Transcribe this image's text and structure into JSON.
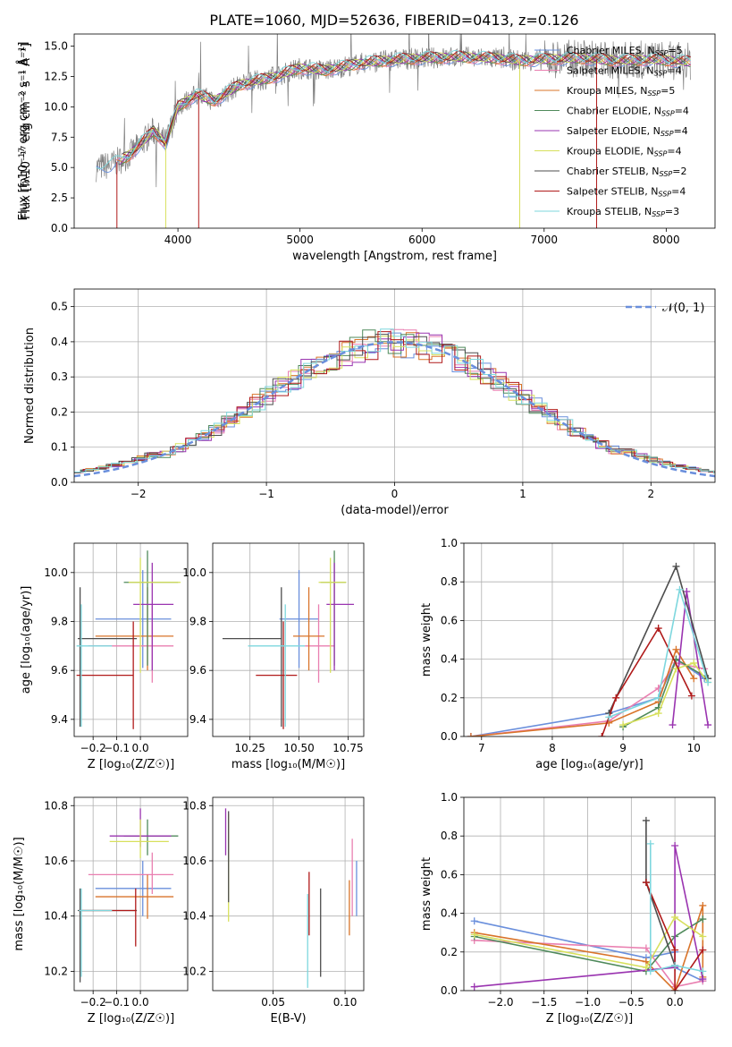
{
  "figure_title": "PLATE=1060, MJD=52636, FIBERID=0413, z=0.126",
  "colors": {
    "Chabrier MILES": "#6a8fdc",
    "Salpeter MILES": "#e97fb0",
    "Kroupa MILES": "#d9742a",
    "Chabrier ELODIE": "#4f8a5b",
    "Salpeter ELODIE": "#9a34b0",
    "Kroupa ELODIE": "#d7e05c",
    "Chabrier STELIB": "#4d4d4d",
    "Salpeter STELIB": "#b01a1a",
    "Kroupa STELIB": "#7ed7de",
    "data": "#808080",
    "normal": "#6a8fdc"
  },
  "chart_data": [
    {
      "id": "spectrum",
      "type": "line",
      "xlabel": "wavelength [Angstrom, rest frame]",
      "ylabel": "Flux [fλ10⁻¹⁷ erg cm⁻² s⁻¹ Å⁻¹]",
      "xlim": [
        3150,
        8400
      ],
      "ylim": [
        0,
        16
      ],
      "xticks": [
        4000,
        5000,
        6000,
        7000,
        8000
      ],
      "yticks": [
        0.0,
        2.5,
        5.0,
        7.5,
        10.0,
        12.5,
        15.0
      ],
      "legend": "right",
      "continuum": {
        "x": [
          3330,
          3450,
          3600,
          3800,
          3900,
          4000,
          4150,
          4300,
          4500,
          4800,
          5000,
          5200,
          5500,
          5800,
          6000,
          6300,
          6600,
          6800,
          7000,
          7300,
          7600,
          7900,
          8200
        ],
        "y": [
          5.0,
          5.2,
          6.0,
          8.0,
          7.0,
          10.0,
          11.0,
          10.5,
          11.8,
          12.5,
          13.2,
          13.0,
          13.6,
          13.9,
          14.0,
          14.1,
          14.0,
          13.8,
          13.9,
          14.0,
          13.8,
          13.9,
          13.7
        ]
      },
      "series": [
        {
          "name": "Chabrier MILES, N_SSP=5",
          "label": "Chabrier MILES, N",
          "n": "=5"
        },
        {
          "name": "Salpeter MILES, N_SSP=4",
          "label": "Salpeter MILES, N",
          "n": "=4"
        },
        {
          "name": "Kroupa MILES, N_SSP=5",
          "label": "Kroupa MILES, N",
          "n": "=5"
        },
        {
          "name": "Chabrier ELODIE, N_SSP=4",
          "label": "Chabrier ELODIE, N",
          "n": "=4"
        },
        {
          "name": "Salpeter ELODIE, N_SSP=4",
          "label": "Salpeter ELODIE, N",
          "n": "=4"
        },
        {
          "name": "Kroupa ELODIE, N_SSP=4",
          "label": "Kroupa ELODIE, N",
          "n": "=4"
        },
        {
          "name": "Chabrier STELIB, N_SSP=2",
          "label": "Chabrier STELIB, N",
          "n": "=2"
        },
        {
          "name": "Salpeter STELIB, N_SSP=4",
          "label": "Salpeter STELIB, N",
          "n": "=4"
        },
        {
          "name": "Kroupa STELIB, N_SSP=3",
          "label": "Kroupa STELIB, N",
          "n": "=3"
        }
      ],
      "drops": [
        {
          "series": "Salpeter STELIB",
          "x": 3500
        },
        {
          "series": "Kroupa ELODIE",
          "x": 3900
        },
        {
          "series": "Salpeter STELIB",
          "x": 4170
        },
        {
          "series": "Kroupa ELODIE",
          "x": 6800
        },
        {
          "series": "Salpeter STELIB",
          "x": 7430
        }
      ]
    },
    {
      "id": "residuals",
      "type": "histogram",
      "xlabel": "(data-model)/error",
      "ylabel": "Normed distribution",
      "xlim": [
        -2.5,
        2.5
      ],
      "ylim": [
        0,
        0.55
      ],
      "xticks": [
        -2,
        -1,
        0,
        1,
        2
      ],
      "yticks": [
        0.0,
        0.1,
        0.2,
        0.3,
        0.4,
        0.5
      ],
      "grid": true,
      "legend": {
        "position": "top-right",
        "label": "𝒩(0, 1)"
      },
      "bin_width": 0.1
    },
    {
      "id": "age-vs-Z",
      "type": "errorbar",
      "xlabel": "Z [log₁₀(Z/Z☉)]",
      "ylabel": "age  [log₁₀(age/yr)]",
      "xlim": [
        -0.28,
        0.2
      ],
      "ylim": [
        9.33,
        10.12
      ],
      "xticks": [
        -0.2,
        -0.1,
        0.0
      ],
      "yticks": [
        9.4,
        9.6,
        9.8,
        10.0
      ],
      "grid": true,
      "points": [
        {
          "series": "Chabrier MILES",
          "x": 0.01,
          "xerr": [
            0.2,
            0.12
          ],
          "y": 9.81,
          "yerr": [
            0.2,
            0.2
          ]
        },
        {
          "series": "Salpeter MILES",
          "x": 0.05,
          "xerr": [
            0.27,
            0.09
          ],
          "y": 9.7,
          "yerr": [
            0.15,
            0.17
          ]
        },
        {
          "series": "Kroupa MILES",
          "x": 0.03,
          "xerr": [
            0.22,
            0.11
          ],
          "y": 9.74,
          "yerr": [
            0.14,
            0.2
          ]
        },
        {
          "series": "Chabrier ELODIE",
          "x": 0.03,
          "xerr": [
            0.1,
            0.13
          ],
          "y": 9.96,
          "yerr": [
            0.34,
            0.13
          ]
        },
        {
          "series": "Salpeter ELODIE",
          "x": 0.05,
          "xerr": [
            0.08,
            0.09
          ],
          "y": 9.87,
          "yerr": [
            0.27,
            0.17
          ]
        },
        {
          "series": "Kroupa ELODIE",
          "x": 0.0,
          "xerr": [
            0.05,
            0.17
          ],
          "y": 9.96,
          "yerr": [
            0.37,
            0.1
          ]
        },
        {
          "series": "Chabrier STELIB",
          "x": -0.255,
          "xerr": [
            0.01,
            0.24
          ],
          "y": 9.73,
          "yerr": [
            0.36,
            0.21
          ]
        },
        {
          "series": "Salpeter STELIB",
          "x": -0.03,
          "xerr": [
            0.24,
            0.0
          ],
          "y": 9.58,
          "yerr": [
            0.22,
            0.22
          ]
        },
        {
          "series": "Kroupa STELIB",
          "x": -0.25,
          "xerr": [
            0.02,
            0.13
          ],
          "y": 9.7,
          "yerr": [
            0.33,
            0.17
          ]
        }
      ]
    },
    {
      "id": "age-vs-mass",
      "type": "errorbar",
      "xlabel": "mass [log₁₀(M/M☉)]",
      "ylabel": "",
      "xlim": [
        10.06,
        10.83
      ],
      "ylim": [
        9.33,
        10.12
      ],
      "xticks": [
        10.25,
        10.5,
        10.75
      ],
      "yticks": [
        9.4,
        9.6,
        9.8,
        10.0
      ],
      "grid": true,
      "points": [
        {
          "series": "Chabrier MILES",
          "x": 10.5,
          "xerr": [
            0.1,
            0.1
          ],
          "y": 9.81,
          "yerr": [
            0.2,
            0.2
          ]
        },
        {
          "series": "Salpeter MILES",
          "x": 10.6,
          "xerr": [
            0.07,
            0.08
          ],
          "y": 9.7,
          "yerr": [
            0.15,
            0.17
          ]
        },
        {
          "series": "Kroupa MILES",
          "x": 10.55,
          "xerr": [
            0.08,
            0.08
          ],
          "y": 9.74,
          "yerr": [
            0.14,
            0.2
          ]
        },
        {
          "series": "Chabrier ELODIE",
          "x": 10.68,
          "xerr": [
            0.07,
            0.06
          ],
          "y": 9.96,
          "yerr": [
            0.34,
            0.13
          ]
        },
        {
          "series": "Salpeter ELODIE",
          "x": 10.68,
          "xerr": [
            0.04,
            0.1
          ],
          "y": 9.87,
          "yerr": [
            0.27,
            0.17
          ]
        },
        {
          "series": "Kroupa ELODIE",
          "x": 10.66,
          "xerr": [
            0.06,
            0.08
          ],
          "y": 9.96,
          "yerr": [
            0.37,
            0.1
          ]
        },
        {
          "series": "Chabrier STELIB",
          "x": 10.41,
          "xerr": [
            0.3,
            0.0
          ],
          "y": 9.73,
          "yerr": [
            0.36,
            0.21
          ]
        },
        {
          "series": "Salpeter STELIB",
          "x": 10.42,
          "xerr": [
            0.14,
            0.07
          ],
          "y": 9.58,
          "yerr": [
            0.22,
            0.22
          ]
        },
        {
          "series": "Kroupa STELIB",
          "x": 10.43,
          "xerr": [
            0.19,
            0.1
          ],
          "y": 9.7,
          "yerr": [
            0.33,
            0.17
          ]
        }
      ]
    },
    {
      "id": "mass-weight-vs-age",
      "type": "line",
      "xlabel": "age  [log₁₀(age/yr)]",
      "ylabel": "mass weight",
      "xlim": [
        6.75,
        10.3
      ],
      "ylim": [
        0,
        1
      ],
      "xticks": [
        7,
        8,
        9,
        10
      ],
      "yticks": [
        0.0,
        0.2,
        0.4,
        0.6,
        0.8,
        1.0
      ],
      "grid": true,
      "series": [
        {
          "series": "Chabrier MILES",
          "x": [
            6.85,
            8.8,
            9.5,
            9.75,
            10.15
          ],
          "y": [
            0.0,
            0.12,
            0.2,
            0.4,
            0.3
          ]
        },
        {
          "series": "Salpeter MILES",
          "x": [
            6.85,
            8.8,
            9.5,
            9.75,
            10.15
          ],
          "y": [
            0.0,
            0.08,
            0.25,
            0.38,
            0.35
          ]
        },
        {
          "series": "Kroupa MILES",
          "x": [
            6.85,
            8.8,
            9.5,
            9.75,
            10.0
          ],
          "y": [
            0.0,
            0.07,
            0.18,
            0.45,
            0.3
          ]
        },
        {
          "series": "Chabrier ELODIE",
          "x": [
            9.0,
            9.5,
            9.75,
            10.2
          ],
          "y": [
            0.05,
            0.15,
            0.4,
            0.3
          ]
        },
        {
          "series": "Salpeter ELODIE",
          "x": [
            9.7,
            9.9,
            10.2
          ],
          "y": [
            0.06,
            0.75,
            0.06
          ]
        },
        {
          "series": "Kroupa ELODIE",
          "x": [
            9.0,
            9.5,
            9.75,
            10.0,
            10.2
          ],
          "y": [
            0.06,
            0.12,
            0.35,
            0.38,
            0.28
          ]
        },
        {
          "series": "Chabrier STELIB",
          "x": [
            8.8,
            9.75,
            10.2
          ],
          "y": [
            0.12,
            0.88,
            0.3
          ]
        },
        {
          "series": "Salpeter STELIB",
          "x": [
            8.7,
            8.9,
            9.5,
            9.97
          ],
          "y": [
            0.0,
            0.2,
            0.56,
            0.21
          ]
        },
        {
          "series": "Kroupa STELIB",
          "x": [
            8.8,
            9.5,
            9.8,
            10.2
          ],
          "y": [
            0.1,
            0.2,
            0.76,
            0.28
          ]
        }
      ]
    },
    {
      "id": "mass-vs-Z",
      "type": "errorbar",
      "xlabel": "Z [log₁₀(Z/Z☉)]",
      "ylabel": "mass [log₁₀(M/M☉)]",
      "xlim": [
        -0.28,
        0.2
      ],
      "ylim": [
        10.13,
        10.83
      ],
      "xticks": [
        -0.2,
        -0.1,
        0.0
      ],
      "yticks": [
        10.2,
        10.4,
        10.6,
        10.8
      ],
      "grid": true,
      "points": [
        {
          "series": "Chabrier MILES",
          "x": 0.01,
          "xerr": [
            0.2,
            0.12
          ],
          "y": 10.5,
          "yerr": [
            0.1,
            0.1
          ]
        },
        {
          "series": "Salpeter MILES",
          "x": 0.05,
          "xerr": [
            0.27,
            0.09
          ],
          "y": 10.55,
          "yerr": [
            0.07,
            0.08
          ]
        },
        {
          "series": "Kroupa MILES",
          "x": 0.03,
          "xerr": [
            0.22,
            0.11
          ],
          "y": 10.47,
          "yerr": [
            0.08,
            0.08
          ]
        },
        {
          "series": "Chabrier ELODIE",
          "x": 0.03,
          "xerr": [
            0.1,
            0.13
          ],
          "y": 10.69,
          "yerr": [
            0.07,
            0.06
          ]
        },
        {
          "series": "Salpeter ELODIE",
          "x": 0.0,
          "xerr": [
            0.13,
            0.13
          ],
          "y": 10.69,
          "yerr": [
            0.04,
            0.1
          ]
        },
        {
          "series": "Kroupa ELODIE",
          "x": 0.0,
          "xerr": [
            0.13,
            0.12
          ],
          "y": 10.67,
          "yerr": [
            0.06,
            0.08
          ]
        },
        {
          "series": "Chabrier STELIB",
          "x": -0.255,
          "xerr": [
            0.01,
            0.24
          ],
          "y": 10.42,
          "yerr": [
            0.26,
            0.08
          ]
        },
        {
          "series": "Salpeter STELIB",
          "x": -0.02,
          "xerr": [
            0.24,
            0.0
          ],
          "y": 10.42,
          "yerr": [
            0.13,
            0.08
          ]
        },
        {
          "series": "Kroupa STELIB",
          "x": -0.25,
          "xerr": [
            0.01,
            0.13
          ],
          "y": 10.42,
          "yerr": [
            0.24,
            0.08
          ]
        }
      ]
    },
    {
      "id": "mass-vs-EBV",
      "type": "errorbar",
      "xlabel": "E(B-V)",
      "ylabel": "",
      "xlim": [
        0.008,
        0.113
      ],
      "ylim": [
        10.13,
        10.83
      ],
      "xticks": [
        0.05,
        0.1
      ],
      "yticks": [
        10.2,
        10.4,
        10.6,
        10.8
      ],
      "grid": true,
      "points": [
        {
          "series": "Salpeter ELODIE",
          "x": 0.017,
          "yerr": [
            0.07,
            0.1
          ],
          "y": 10.69
        },
        {
          "series": "Kroupa ELODIE",
          "x": 0.019,
          "yerr": [
            0.23,
            0.16
          ],
          "y": 10.61
        },
        {
          "series": "Chabrier STELIB",
          "x": 0.019,
          "yerr": [
            0.16,
            0.17
          ],
          "y": 10.61
        },
        {
          "series": "Salpeter STELIB",
          "x": 0.075,
          "yerr": [
            0.09,
            0.14
          ],
          "y": 10.42
        },
        {
          "series": "Kroupa STELIB",
          "x": 0.074,
          "yerr": [
            0.24,
            0.1
          ],
          "y": 10.38
        },
        {
          "series": "Chabrier STELIB",
          "x": 0.083,
          "yerr": [
            0.24,
            0.08
          ],
          "y": 10.42
        },
        {
          "series": "Kroupa MILES",
          "x": 0.103,
          "yerr": [
            0.1,
            0.1
          ],
          "y": 10.43
        },
        {
          "series": "Salpeter MILES",
          "x": 0.105,
          "yerr": [
            0.18,
            0.1
          ],
          "y": 10.58
        },
        {
          "series": "Chabrier MILES",
          "x": 0.108,
          "yerr": [
            0.1,
            0.1
          ],
          "y": 10.5
        }
      ]
    },
    {
      "id": "mass-weight-vs-Z",
      "type": "line",
      "xlabel": "Z [log₁₀(Z/Z☉)]",
      "ylabel": "mass weight",
      "xlim": [
        -2.42,
        0.46
      ],
      "ylim": [
        0,
        1
      ],
      "xticks": [
        -2.0,
        -1.5,
        -1.0,
        -0.5,
        0.0
      ],
      "yticks": [
        0.0,
        0.2,
        0.4,
        0.6,
        0.8,
        1.0
      ],
      "grid": true,
      "series": [
        {
          "series": "Chabrier MILES",
          "x": [
            -2.3,
            -0.33,
            0.0,
            0.0,
            0.32
          ],
          "y": [
            0.36,
            0.17,
            0.2,
            0.12,
            0.05
          ]
        },
        {
          "series": "Salpeter MILES",
          "x": [
            -2.3,
            -0.33,
            0.0,
            0.32
          ],
          "y": [
            0.26,
            0.22,
            0.02,
            0.05
          ]
        },
        {
          "series": "Kroupa MILES",
          "x": [
            -2.3,
            -0.33,
            0.0,
            0.32,
            0.32
          ],
          "y": [
            0.3,
            0.15,
            0.0,
            0.44,
            0.07
          ]
        },
        {
          "series": "Chabrier ELODIE",
          "x": [
            -2.3,
            -0.33,
            0.0,
            0.32
          ],
          "y": [
            0.28,
            0.1,
            0.28,
            0.37
          ]
        },
        {
          "series": "Salpeter ELODIE",
          "x": [
            -2.3,
            0.0,
            0.0,
            0.32
          ],
          "y": [
            0.02,
            0.12,
            0.75,
            0.06
          ]
        },
        {
          "series": "Kroupa ELODIE",
          "x": [
            -2.3,
            -0.33,
            0.0,
            0.32
          ],
          "y": [
            0.29,
            0.12,
            0.38,
            0.28
          ]
        },
        {
          "series": "Chabrier STELIB",
          "x": [
            -0.33,
            -0.33,
            0.0
          ],
          "y": [
            0.88,
            0.56,
            0.13
          ]
        },
        {
          "series": "Salpeter STELIB",
          "x": [
            -0.33,
            0.0,
            0.0,
            0.32
          ],
          "y": [
            0.56,
            0.21,
            0.0,
            0.21
          ]
        },
        {
          "series": "Kroupa STELIB",
          "x": [
            -0.28,
            -0.28,
            0.0,
            0.32
          ],
          "y": [
            0.76,
            0.1,
            0.13,
            0.1
          ]
        }
      ]
    }
  ]
}
